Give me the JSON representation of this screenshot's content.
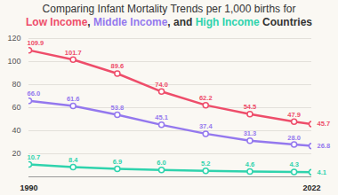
{
  "chart_data": {
    "type": "line",
    "title": "Comparing Infant Mortality Trends per 1,000 births for",
    "subtitle": "Low Income, Middle Income, and High Income Countries",
    "x": [
      1990,
      1995,
      2000,
      2005,
      2010,
      2015,
      2020,
      2022
    ],
    "series": [
      {
        "name": "Low Income",
        "color": "#ee4d6a",
        "values": [
          109.9,
          101.7,
          89.6,
          74.0,
          62.2,
          54.5,
          47.9,
          45.7
        ],
        "value_labels": [
          "109.9",
          "101.7",
          "89.6",
          "74.0",
          "62.2",
          "54.5",
          "47.9",
          "45.7"
        ]
      },
      {
        "name": "Middle Income",
        "color": "#9478ee",
        "values": [
          66.0,
          61.6,
          53.8,
          45.1,
          37.4,
          31.3,
          28.0,
          26.8
        ],
        "value_labels": [
          "66.0",
          "61.6",
          "53.8",
          "45.1",
          "37.4",
          "31.3",
          "28.0",
          "26.8"
        ]
      },
      {
        "name": "High Income",
        "color": "#2fd3ad",
        "values": [
          10.7,
          8.4,
          6.9,
          6.0,
          5.2,
          4.6,
          4.3,
          4.1
        ],
        "value_labels": [
          "10.7",
          "8.4",
          "6.9",
          "6.0",
          "5.2",
          "4.6",
          "4.3",
          "4.1"
        ]
      }
    ],
    "xlim": [
      1990,
      2022
    ],
    "xticks": [
      1990,
      2022
    ],
    "ylim": [
      0,
      120
    ],
    "yticks": [
      20,
      40,
      60,
      80,
      100,
      120
    ],
    "grid": true,
    "data_labels": true,
    "marker": "circle",
    "line_style": "solid"
  }
}
